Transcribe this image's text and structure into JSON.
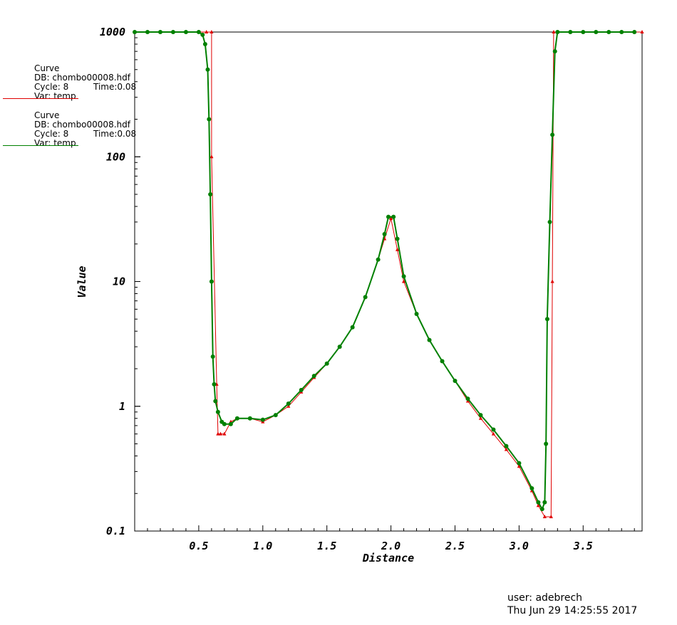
{
  "legend": [
    {
      "title": "Curve",
      "db": "DB: chombo00008.hdf",
      "cycle": "Cycle: 8",
      "time": "Time:0.08",
      "var": "Var: temp",
      "color": "#e00000"
    },
    {
      "title": "Curve",
      "db": "DB: chombo00008.hdf",
      "cycle": "Cycle: 8",
      "time": "Time:0.08",
      "var": "Var: temp",
      "color": "#008000"
    }
  ],
  "footer": {
    "user": "user: adebrech",
    "date": "Thu Jun 29 14:25:55 2017"
  },
  "chart_data": {
    "type": "line",
    "xlabel": "Distance",
    "ylabel": "Value",
    "xlim": [
      0,
      3.96
    ],
    "ylim": [
      0.1,
      1000
    ],
    "yscale": "log",
    "xticks": [
      "0.5",
      "1.0",
      "1.5",
      "2.0",
      "2.5",
      "3.0",
      "3.5"
    ],
    "yticks": [
      "0.1",
      "1",
      "10",
      "100",
      "1000"
    ],
    "grid": false,
    "series": [
      {
        "color": "#e00000",
        "marker": "triangle",
        "x": [
          0,
          0.1,
          0.2,
          0.3,
          0.4,
          0.5,
          0.56,
          0.6,
          0.6,
          0.64,
          0.65,
          0.67,
          0.7,
          0.75,
          0.8,
          0.9,
          1.0,
          1.1,
          1.2,
          1.3,
          1.4,
          1.5,
          1.6,
          1.7,
          1.8,
          1.9,
          1.95,
          2.0,
          2.05,
          2.1,
          2.2,
          2.3,
          2.4,
          2.5,
          2.6,
          2.7,
          2.8,
          2.9,
          3.0,
          3.1,
          3.15,
          3.2,
          3.25,
          3.26,
          3.27,
          3.3,
          3.4,
          3.5,
          3.6,
          3.7,
          3.8,
          3.9,
          3.96
        ],
        "y": [
          1000,
          1000,
          1000,
          1000,
          1000,
          1000,
          1000,
          1000,
          100,
          1.5,
          0.6,
          0.6,
          0.6,
          0.75,
          0.8,
          0.8,
          0.75,
          0.85,
          1.0,
          1.3,
          1.7,
          2.2,
          3.0,
          4.3,
          7.5,
          15,
          22,
          32,
          18,
          10,
          5.5,
          3.4,
          2.3,
          1.6,
          1.1,
          0.8,
          0.6,
          0.45,
          0.33,
          0.21,
          0.16,
          0.13,
          0.13,
          10,
          1000,
          1000,
          1000,
          1000,
          1000,
          1000,
          1000,
          1000,
          1000
        ]
      },
      {
        "color": "#008000",
        "marker": "circle",
        "x": [
          0,
          0.1,
          0.2,
          0.3,
          0.4,
          0.5,
          0.53,
          0.55,
          0.57,
          0.58,
          0.59,
          0.6,
          0.61,
          0.62,
          0.63,
          0.65,
          0.68,
          0.7,
          0.75,
          0.8,
          0.9,
          1.0,
          1.1,
          1.2,
          1.3,
          1.4,
          1.5,
          1.6,
          1.7,
          1.8,
          1.9,
          1.95,
          1.98,
          2.02,
          2.05,
          2.1,
          2.2,
          2.3,
          2.4,
          2.5,
          2.6,
          2.7,
          2.8,
          2.9,
          3.0,
          3.1,
          3.15,
          3.18,
          3.2,
          3.21,
          3.22,
          3.24,
          3.26,
          3.28,
          3.3,
          3.4,
          3.5,
          3.6,
          3.7,
          3.8,
          3.9
        ],
        "y": [
          1000,
          1000,
          1000,
          1000,
          1000,
          1000,
          950,
          800,
          500,
          200,
          50,
          10,
          2.5,
          1.5,
          1.1,
          0.9,
          0.75,
          0.72,
          0.72,
          0.8,
          0.8,
          0.78,
          0.85,
          1.05,
          1.35,
          1.75,
          2.2,
          3.0,
          4.3,
          7.5,
          15,
          24,
          33,
          33,
          22,
          11,
          5.5,
          3.4,
          2.3,
          1.6,
          1.15,
          0.85,
          0.65,
          0.48,
          0.35,
          0.22,
          0.17,
          0.15,
          0.17,
          0.5,
          5,
          30,
          150,
          700,
          1000,
          1000,
          1000,
          1000,
          1000,
          1000,
          1000
        ]
      }
    ]
  }
}
